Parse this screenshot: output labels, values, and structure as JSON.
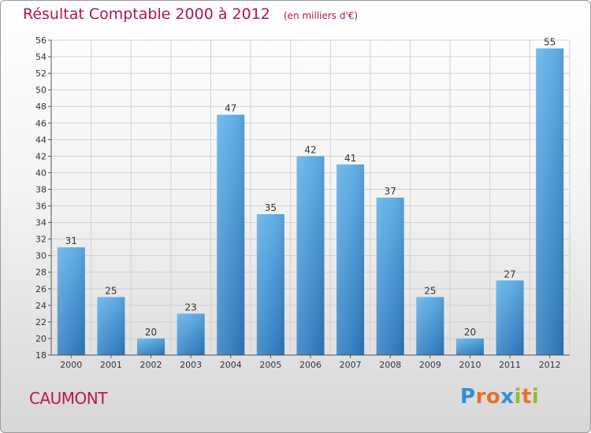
{
  "chart_data": {
    "type": "bar",
    "title": "Résultat Comptable 2000 à 2012",
    "subtitle": "(en milliers d'€)",
    "categories": [
      "2000",
      "2001",
      "2002",
      "2003",
      "2004",
      "2005",
      "2006",
      "2007",
      "2008",
      "2009",
      "2010",
      "2011",
      "2012"
    ],
    "values": [
      31,
      25,
      20,
      23,
      47,
      35,
      42,
      41,
      37,
      25,
      20,
      27,
      55
    ],
    "ylim": [
      18,
      56
    ],
    "yticks": [
      18,
      20,
      22,
      24,
      26,
      28,
      30,
      32,
      34,
      36,
      38,
      40,
      42,
      44,
      46,
      48,
      50,
      52,
      54,
      56
    ],
    "grid": true,
    "xlabel": "",
    "ylabel": "",
    "bar_color": "#3a8fd6"
  },
  "commune": "CAUMONT",
  "brand": {
    "name": "Proxiti",
    "letters": [
      "P",
      "r",
      "o",
      "x",
      "i",
      "t",
      "i"
    ],
    "letter_colors": [
      "#2f8fd8",
      "#e8702a",
      "#e8702a",
      "#2f8fd8",
      "#8dbf2d",
      "#e8702a",
      "#8dbf2d"
    ]
  },
  "colors": {
    "title": "#b0154f",
    "commune": "#c0154f",
    "grid": "#d0d0d0"
  }
}
